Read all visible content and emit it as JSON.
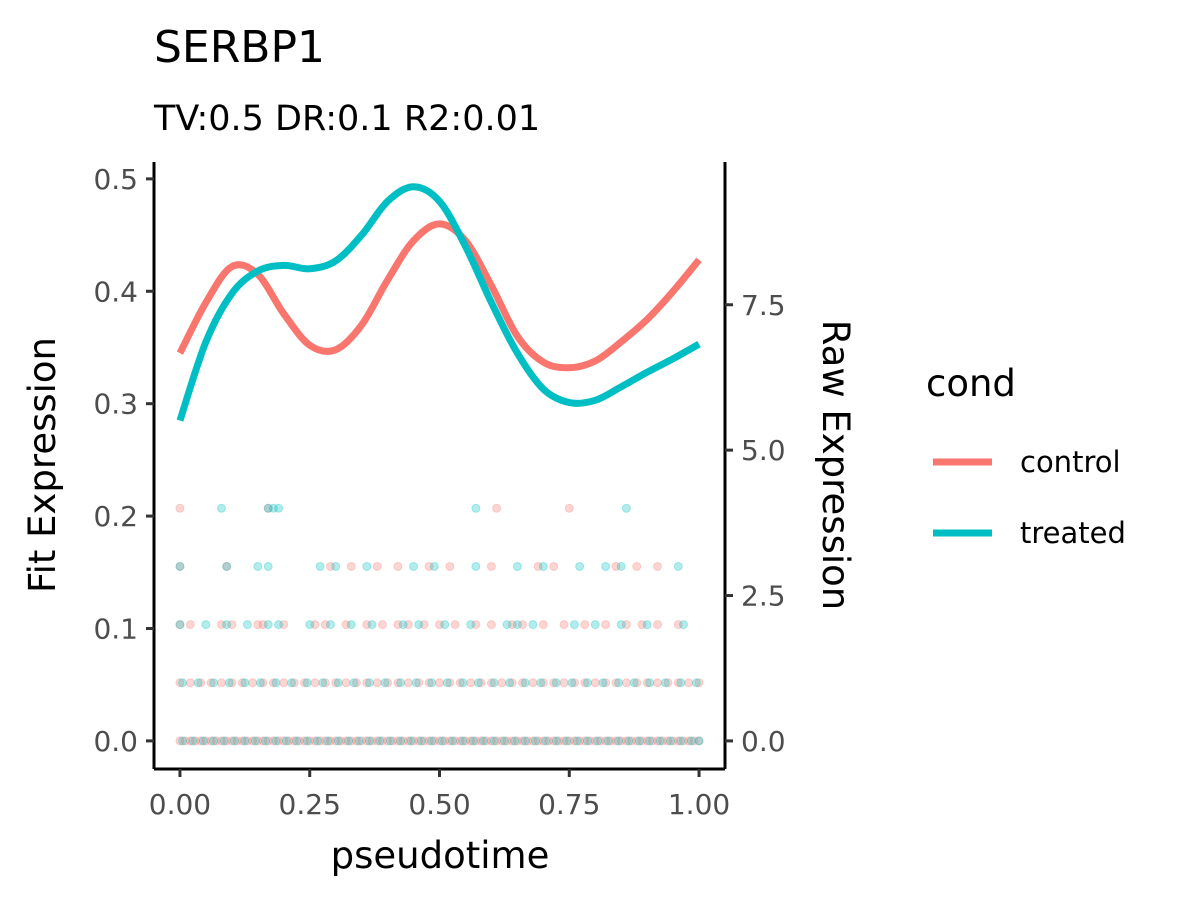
{
  "chart_data": {
    "type": "line",
    "title": "SERBP1",
    "subtitle": "TV:0.5 DR:0.1 R2:0.01",
    "xlabel": "pseudotime",
    "ylabel": "Fit Expression",
    "y2label": "Raw Expression",
    "xlim": [
      -0.05,
      1.05
    ],
    "ylim": [
      -0.025,
      0.515
    ],
    "y2_scale_factor": 19.33,
    "x_ticks": [
      "0.00",
      "0.25",
      "0.50",
      "0.75",
      "1.00"
    ],
    "x_tick_values": [
      0,
      0.25,
      0.5,
      0.75,
      1.0
    ],
    "y_ticks": [
      "0.0",
      "0.1",
      "0.2",
      "0.3",
      "0.4",
      "0.5"
    ],
    "y_tick_values": [
      0,
      0.1,
      0.2,
      0.3,
      0.4,
      0.5
    ],
    "y2_ticks": [
      "0.0",
      "2.5",
      "5.0",
      "7.5"
    ],
    "y2_tick_values": [
      0,
      2.5,
      5.0,
      7.5
    ],
    "legend": {
      "title": "cond",
      "position": "right"
    },
    "grid": false,
    "series": [
      {
        "name": "control",
        "color": "#F8766D",
        "x": [
          0,
          0.05,
          0.1,
          0.15,
          0.2,
          0.25,
          0.3,
          0.35,
          0.4,
          0.45,
          0.5,
          0.55,
          0.6,
          0.65,
          0.7,
          0.75,
          0.8,
          0.85,
          0.9,
          0.95,
          1.0
        ],
        "values": [
          0.345,
          0.39,
          0.422,
          0.415,
          0.38,
          0.352,
          0.348,
          0.37,
          0.41,
          0.445,
          0.46,
          0.445,
          0.405,
          0.36,
          0.337,
          0.332,
          0.338,
          0.355,
          0.375,
          0.4,
          0.428
        ]
      },
      {
        "name": "treated",
        "color": "#00BFC4",
        "x": [
          0,
          0.05,
          0.1,
          0.15,
          0.2,
          0.25,
          0.3,
          0.35,
          0.4,
          0.45,
          0.5,
          0.55,
          0.6,
          0.65,
          0.7,
          0.75,
          0.8,
          0.85,
          0.9,
          0.95,
          1.0
        ],
        "values": [
          0.285,
          0.355,
          0.398,
          0.418,
          0.423,
          0.42,
          0.427,
          0.45,
          0.48,
          0.493,
          0.48,
          0.44,
          0.39,
          0.345,
          0.313,
          0.301,
          0.303,
          0.315,
          0.328,
          0.34,
          0.353
        ]
      }
    ],
    "raw_points": {
      "levels": [
        0,
        1,
        2,
        3,
        4
      ],
      "series": [
        {
          "name": "control",
          "color": "#F8766D",
          "by_level": [
            [
              0.0,
              0.01,
              0.02,
              0.03,
              0.04,
              0.05,
              0.06,
              0.07,
              0.08,
              0.09,
              0.1,
              0.11,
              0.12,
              0.13,
              0.14,
              0.15,
              0.16,
              0.17,
              0.18,
              0.19,
              0.2,
              0.21,
              0.22,
              0.23,
              0.24,
              0.25,
              0.26,
              0.27,
              0.28,
              0.29,
              0.3,
              0.31,
              0.32,
              0.33,
              0.34,
              0.35,
              0.36,
              0.37,
              0.38,
              0.39,
              0.4,
              0.41,
              0.42,
              0.43,
              0.44,
              0.45,
              0.46,
              0.47,
              0.48,
              0.49,
              0.5,
              0.51,
              0.52,
              0.53,
              0.54,
              0.55,
              0.56,
              0.57,
              0.58,
              0.59,
              0.6,
              0.61,
              0.62,
              0.63,
              0.64,
              0.65,
              0.66,
              0.67,
              0.68,
              0.69,
              0.7,
              0.71,
              0.72,
              0.73,
              0.74,
              0.75,
              0.76,
              0.77,
              0.78,
              0.79,
              0.8,
              0.81,
              0.82,
              0.83,
              0.84,
              0.85,
              0.86,
              0.87,
              0.88,
              0.89,
              0.9,
              0.91,
              0.92,
              0.93,
              0.94,
              0.95,
              0.96,
              0.97,
              0.98,
              0.99,
              1.0
            ],
            [
              0.0,
              0.02,
              0.04,
              0.06,
              0.08,
              0.1,
              0.12,
              0.14,
              0.16,
              0.18,
              0.2,
              0.22,
              0.24,
              0.26,
              0.28,
              0.3,
              0.32,
              0.34,
              0.36,
              0.38,
              0.4,
              0.42,
              0.44,
              0.46,
              0.48,
              0.5,
              0.52,
              0.54,
              0.56,
              0.58,
              0.6,
              0.62,
              0.64,
              0.66,
              0.68,
              0.7,
              0.72,
              0.74,
              0.76,
              0.78,
              0.8,
              0.82,
              0.84,
              0.86,
              0.88,
              0.9,
              0.92,
              0.94,
              0.96,
              0.98,
              1.0
            ],
            [
              0.0,
              0.02,
              0.08,
              0.1,
              0.15,
              0.16,
              0.2,
              0.26,
              0.28,
              0.32,
              0.36,
              0.39,
              0.42,
              0.44,
              0.47,
              0.5,
              0.53,
              0.57,
              0.6,
              0.64,
              0.66,
              0.7,
              0.74,
              0.78,
              0.82,
              0.86,
              0.89,
              0.92,
              0.96
            ],
            [
              0.0,
              0.09,
              0.29,
              0.33,
              0.38,
              0.42,
              0.48,
              0.52,
              0.6,
              0.69,
              0.72,
              0.84,
              0.88,
              0.92
            ],
            [
              0.0,
              0.17,
              0.61,
              0.75
            ]
          ]
        },
        {
          "name": "treated",
          "color": "#00BFC4",
          "by_level": [
            [
              0.005,
              0.025,
              0.045,
              0.065,
              0.085,
              0.105,
              0.125,
              0.145,
              0.165,
              0.185,
              0.205,
              0.225,
              0.245,
              0.265,
              0.285,
              0.305,
              0.325,
              0.345,
              0.365,
              0.385,
              0.405,
              0.425,
              0.445,
              0.465,
              0.485,
              0.505,
              0.525,
              0.545,
              0.565,
              0.585,
              0.605,
              0.625,
              0.645,
              0.665,
              0.685,
              0.705,
              0.725,
              0.745,
              0.765,
              0.785,
              0.805,
              0.825,
              0.845,
              0.865,
              0.885,
              0.905,
              0.925,
              0.945,
              0.965,
              0.985,
              1.0
            ],
            [
              0.005,
              0.035,
              0.065,
              0.095,
              0.125,
              0.155,
              0.185,
              0.215,
              0.245,
              0.275,
              0.305,
              0.335,
              0.365,
              0.395,
              0.425,
              0.455,
              0.485,
              0.515,
              0.545,
              0.575,
              0.605,
              0.635,
              0.665,
              0.695,
              0.725,
              0.755,
              0.785,
              0.815,
              0.845,
              0.875,
              0.905,
              0.935,
              0.965,
              0.995
            ],
            [
              0.0,
              0.05,
              0.09,
              0.13,
              0.17,
              0.19,
              0.25,
              0.29,
              0.33,
              0.37,
              0.43,
              0.46,
              0.51,
              0.56,
              0.63,
              0.65,
              0.68,
              0.76,
              0.8,
              0.85,
              0.9,
              0.97
            ],
            [
              0.0,
              0.09,
              0.15,
              0.17,
              0.27,
              0.3,
              0.36,
              0.45,
              0.49,
              0.57,
              0.65,
              0.7,
              0.77,
              0.82,
              0.85,
              0.96
            ],
            [
              0.08,
              0.17,
              0.18,
              0.19,
              0.57,
              0.86
            ]
          ]
        }
      ]
    }
  }
}
